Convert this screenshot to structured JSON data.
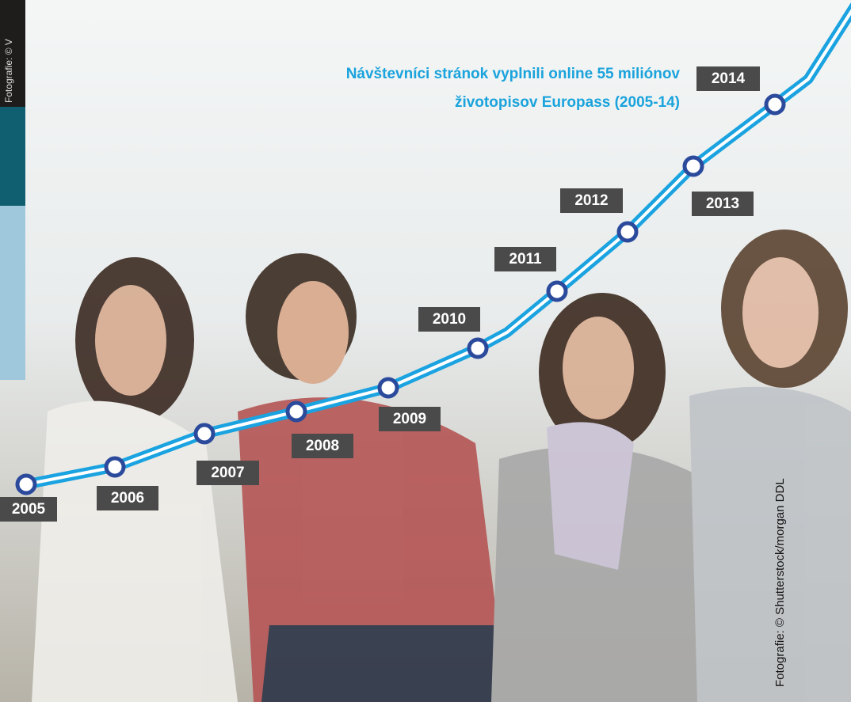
{
  "title_lines": [
    "Návštevníci stránok vyplnili online 55 miliónov",
    "životopisov Europass (2005-14)"
  ],
  "years": [
    "2005",
    "2006",
    "2007",
    "2008",
    "2009",
    "2010",
    "2011",
    "2012",
    "2013",
    "2014"
  ],
  "photo_credit": "Fotografie: © Shutterstock/morgan DDL",
  "side_credit": "Fotografie: © V"
}
